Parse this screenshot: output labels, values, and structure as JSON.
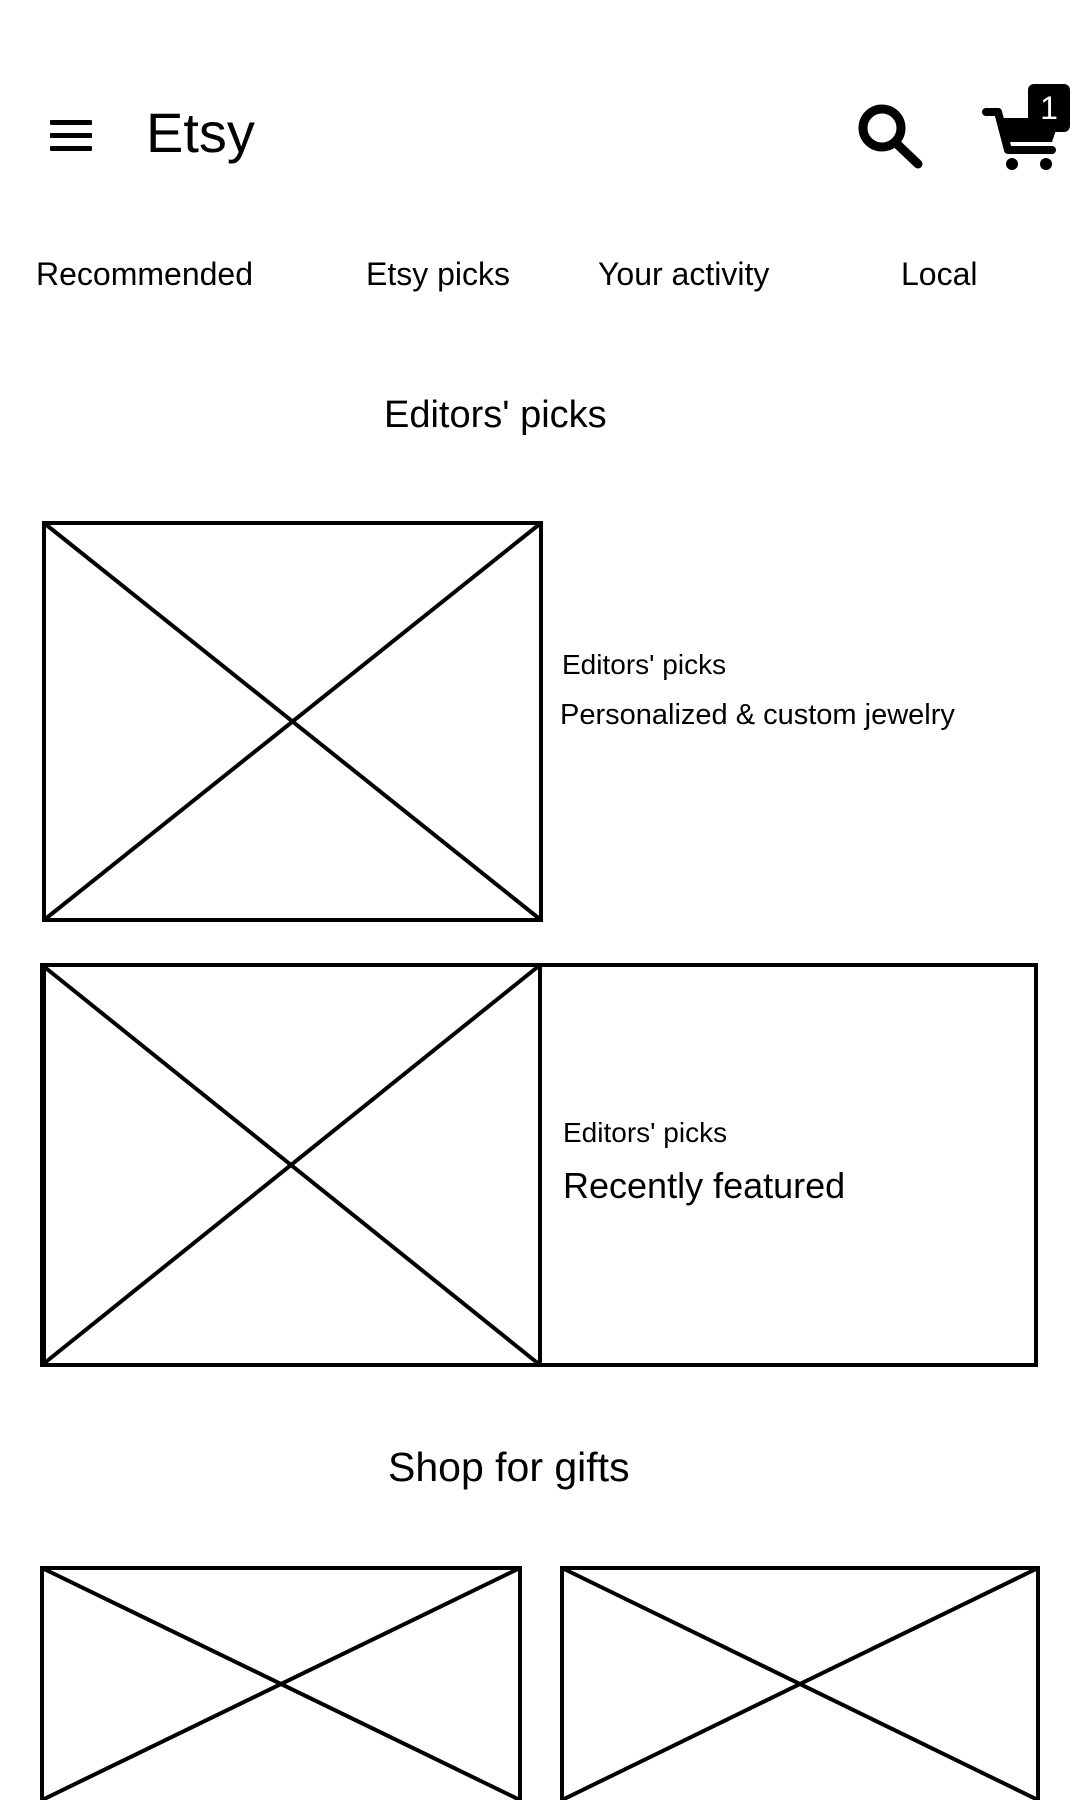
{
  "header": {
    "menu_icon": "hamburger-menu-icon",
    "title": "Etsy",
    "search_icon": "search-icon",
    "cart_icon": "shopping-cart-icon",
    "cart_count": "1"
  },
  "tabs": [
    {
      "label": "Recommended"
    },
    {
      "label": "Etsy picks"
    },
    {
      "label": "Your activity"
    },
    {
      "label": "Local"
    }
  ],
  "editors_section": {
    "title": "Editors' picks",
    "cards": [
      {
        "label": "Editors' picks",
        "title": "Personalized & custom jewelry",
        "image_icon": "image-placeholder-icon"
      },
      {
        "label": "Editors' picks",
        "title": "Recently featured",
        "image_icon": "image-placeholder-icon"
      }
    ]
  },
  "gifts_section": {
    "title": "Shop for gifts",
    "tiles": [
      {
        "image_icon": "image-placeholder-icon"
      },
      {
        "image_icon": "image-placeholder-icon"
      }
    ]
  }
}
